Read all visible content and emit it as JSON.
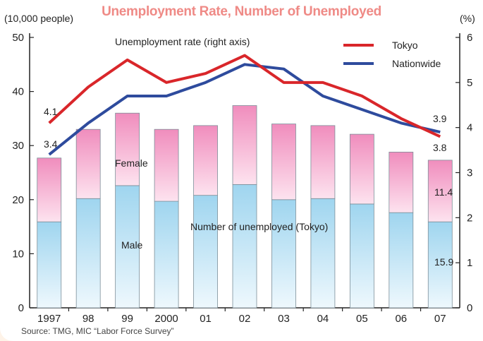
{
  "title": "Unemployment Rate, Number of Unemployed",
  "source": "Source:  TMG, MIC “Labor Force Survey”",
  "colors": {
    "title": "#ef8a86",
    "male": "#9fd5ef",
    "female": "#f08dbd",
    "tokyo": "#d9262a",
    "nationwide": "#2e4b9d"
  },
  "chart_data": {
    "type": "bar",
    "stacked": true,
    "title": "Unemployment Rate, Number of Unemployed",
    "categories": [
      "1997",
      "98",
      "99",
      "2000",
      "01",
      "02",
      "03",
      "04",
      "05",
      "06",
      "07"
    ],
    "left_axis": {
      "label": "(10,000 people)",
      "ticks": [
        "0",
        "10",
        "20",
        "30",
        "40",
        "50"
      ],
      "ylim": [
        0,
        50
      ]
    },
    "right_axis": {
      "label": "(%)",
      "ticks": [
        "0",
        "1",
        "2",
        "3",
        "4",
        "5",
        "6"
      ],
      "ylim": [
        0,
        6
      ]
    },
    "series": [
      {
        "name": "Male",
        "kind": "bar",
        "axis": "left",
        "values": [
          15.9,
          20.2,
          22.6,
          19.7,
          20.8,
          22.8,
          20.0,
          20.2,
          19.2,
          17.6,
          15.9
        ]
      },
      {
        "name": "Female",
        "kind": "bar",
        "axis": "left",
        "values": [
          11.8,
          12.8,
          13.4,
          13.3,
          12.9,
          14.6,
          14.0,
          13.5,
          12.9,
          11.2,
          11.4
        ]
      },
      {
        "name": "Tokyo",
        "kind": "line",
        "axis": "right",
        "values": [
          4.1,
          4.9,
          5.5,
          5.0,
          5.2,
          5.6,
          5.0,
          5.0,
          4.7,
          4.2,
          3.8
        ]
      },
      {
        "name": "Nationwide",
        "kind": "line",
        "axis": "right",
        "values": [
          3.4,
          4.1,
          4.7,
          4.7,
          5.0,
          5.4,
          5.3,
          4.7,
          4.4,
          4.1,
          3.9
        ]
      }
    ],
    "annotations": {
      "female_label": "Female",
      "male_label": "Male",
      "bars_caption": "Number of unemployed (Tokyo)",
      "rate_caption": "Unemployment rate (right axis)",
      "tokyo_first": "4.1",
      "nation_first": "3.4",
      "nation_last": "3.9",
      "tokyo_last": "3.8",
      "female_last": "11.4",
      "male_last": "15.9"
    },
    "legend": {
      "placement": "top-right",
      "items": [
        "Tokyo",
        "Nationwide"
      ]
    },
    "grid": false
  }
}
